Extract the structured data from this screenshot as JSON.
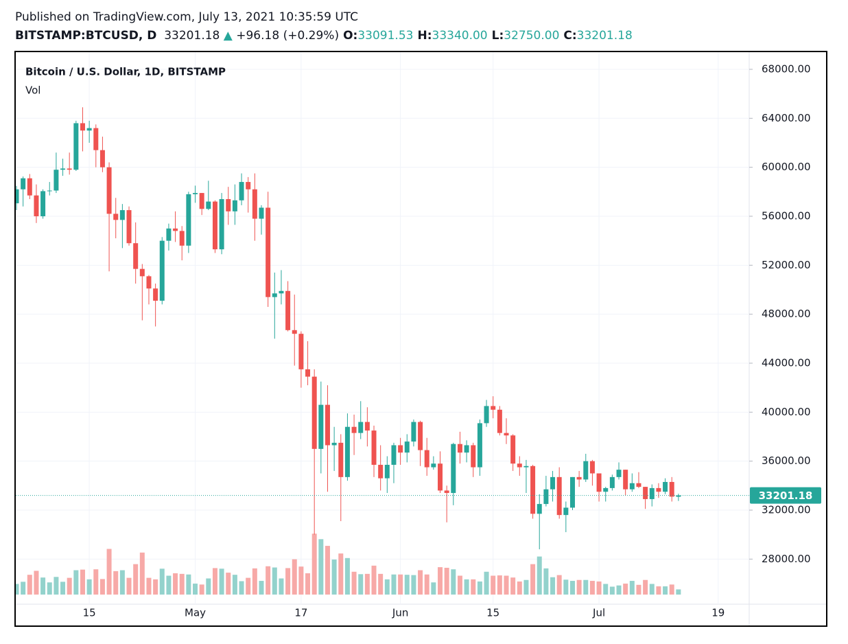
{
  "header": {
    "published": "Published on TradingView.com, July 13, 2021 10:35:59 UTC",
    "symbol": "BITSTAMP:BTCUSD, D",
    "last": "33201.18",
    "arrow": "▲",
    "change": "+96.18 (+0.29%)",
    "ohlc": [
      {
        "label": "O:",
        "value": "33091.53"
      },
      {
        "label": "H:",
        "value": "33340.00"
      },
      {
        "label": "L:",
        "value": "32750.00"
      },
      {
        "label": "C:",
        "value": "33201.18"
      }
    ]
  },
  "chart_data": {
    "type": "candlestick",
    "title": "Bitcoin / U.S. Dollar, 1D, BITSTAMP",
    "volume_label": "Vol",
    "up_color": "#26a69a",
    "down_color": "#ef5350",
    "volume_up_color": "#93d2cc",
    "volume_down_color": "#f7a9a7",
    "grid": true,
    "x": [
      "2021-04-04",
      "2021-04-05",
      "2021-04-06",
      "2021-04-07",
      "2021-04-08",
      "2021-04-09",
      "2021-04-10",
      "2021-04-11",
      "2021-04-12",
      "2021-04-13",
      "2021-04-14",
      "2021-04-15",
      "2021-04-16",
      "2021-04-17",
      "2021-04-18",
      "2021-04-19",
      "2021-04-20",
      "2021-04-21",
      "2021-04-22",
      "2021-04-23",
      "2021-04-24",
      "2021-04-25",
      "2021-04-26",
      "2021-04-27",
      "2021-04-28",
      "2021-04-29",
      "2021-04-30",
      "2021-05-01",
      "2021-05-02",
      "2021-05-03",
      "2021-05-04",
      "2021-05-05",
      "2021-05-06",
      "2021-05-07",
      "2021-05-08",
      "2021-05-09",
      "2021-05-10",
      "2021-05-11",
      "2021-05-12",
      "2021-05-13",
      "2021-05-14",
      "2021-05-15",
      "2021-05-16",
      "2021-05-17",
      "2021-05-18",
      "2021-05-19",
      "2021-05-20",
      "2021-05-21",
      "2021-05-22",
      "2021-05-23",
      "2021-05-24",
      "2021-05-25",
      "2021-05-26",
      "2021-05-27",
      "2021-05-28",
      "2021-05-29",
      "2021-05-30",
      "2021-05-31",
      "2021-06-01",
      "2021-06-02",
      "2021-06-03",
      "2021-06-04",
      "2021-06-05",
      "2021-06-06",
      "2021-06-07",
      "2021-06-08",
      "2021-06-09",
      "2021-06-10",
      "2021-06-11",
      "2021-06-12",
      "2021-06-13",
      "2021-06-14",
      "2021-06-15",
      "2021-06-16",
      "2021-06-17",
      "2021-06-18",
      "2021-06-19",
      "2021-06-20",
      "2021-06-21",
      "2021-06-22",
      "2021-06-23",
      "2021-06-24",
      "2021-06-25",
      "2021-06-26",
      "2021-06-27",
      "2021-06-28",
      "2021-06-29",
      "2021-06-30",
      "2021-07-01",
      "2021-07-02",
      "2021-07-03",
      "2021-07-04",
      "2021-07-05",
      "2021-07-06",
      "2021-07-07",
      "2021-07-08",
      "2021-07-09",
      "2021-07-10",
      "2021-07-11",
      "2021-07-12",
      "2021-07-13"
    ],
    "open": [
      57060,
      58200,
      59100,
      57700,
      56000,
      58050,
      58100,
      59800,
      59900,
      59800,
      63600,
      63000,
      63200,
      61400,
      60000,
      56200,
      55700,
      56500,
      53800,
      51700,
      51100,
      50100,
      49100,
      54000,
      55000,
      54800,
      53600,
      57800,
      57900,
      56600,
      57200,
      53300,
      57400,
      56400,
      57300,
      58800,
      58200,
      55800,
      56700,
      49400,
      49700,
      49900,
      46700,
      46400,
      43500,
      42900,
      37000,
      40600,
      37300,
      37500,
      34700,
      38800,
      38300,
      39200,
      38500,
      35700,
      34600,
      35700,
      37300,
      36700,
      37600,
      39200,
      36900,
      35500,
      35800,
      33600,
      33400,
      37400,
      36700,
      37300,
      35500,
      39100,
      40500,
      40200,
      38300,
      38100,
      35800,
      35500,
      35600,
      31700,
      32500,
      33700,
      34700,
      31600,
      32200,
      34700,
      34500,
      36000,
      35000,
      33500,
      33800,
      34700,
      35300,
      33700,
      34200,
      33900,
      32900,
      33800,
      33500,
      34300,
      33091.53
    ],
    "high": [
      58480,
      59250,
      59450,
      58600,
      58200,
      58800,
      61200,
      60700,
      61200,
      63800,
      64900,
      63800,
      63500,
      62500,
      60400,
      57500,
      57000,
      56800,
      55500,
      52100,
      51200,
      50500,
      54300,
      55400,
      56400,
      55200,
      58000,
      58500,
      57900,
      58900,
      57300,
      57900,
      58400,
      58600,
      59500,
      59200,
      59500,
      56900,
      58000,
      51400,
      51600,
      50700,
      49600,
      46600,
      45800,
      43500,
      42500,
      42200,
      38800,
      38200,
      39900,
      39800,
      40900,
      40400,
      38900,
      37300,
      36400,
      37500,
      37900,
      38200,
      39400,
      39300,
      37900,
      36400,
      36800,
      34000,
      37500,
      38400,
      37700,
      37500,
      39400,
      41000,
      41300,
      40500,
      39500,
      38200,
      36400,
      36100,
      35700,
      33300,
      34800,
      35200,
      35500,
      32700,
      34700,
      35200,
      36600,
      36100,
      35000,
      33900,
      34900,
      35900,
      35300,
      35000,
      35100,
      33900,
      34100,
      34200,
      34600,
      34700,
      33340
    ],
    "low": [
      56500,
      56800,
      57400,
      55450,
      55800,
      57700,
      57900,
      59300,
      59400,
      59700,
      61300,
      62000,
      60000,
      59600,
      51500,
      54200,
      53400,
      53600,
      50500,
      47500,
      48800,
      47000,
      48800,
      53200,
      53900,
      52400,
      53000,
      57100,
      56100,
      56500,
      53000,
      52900,
      55300,
      55300,
      56900,
      56300,
      54000,
      54500,
      48600,
      46000,
      48800,
      46600,
      43800,
      42000,
      42200,
      30000,
      35000,
      33500,
      35200,
      31100,
      34400,
      36500,
      37800,
      37200,
      34700,
      33600,
      33400,
      34200,
      35700,
      35900,
      37200,
      35600,
      34800,
      35300,
      33400,
      31000,
      32400,
      35800,
      35900,
      34700,
      34800,
      38800,
      39500,
      38100,
      37400,
      35200,
      34800,
      33400,
      31300,
      28800,
      32300,
      32700,
      31300,
      30200,
      32000,
      33900,
      34300,
      34000,
      32700,
      32700,
      33600,
      34500,
      33200,
      33500,
      33800,
      32100,
      32300,
      33000,
      33300,
      32700,
      32750
    ],
    "close": [
      58200,
      59100,
      57700,
      56000,
      58050,
      58100,
      59800,
      59900,
      59800,
      63600,
      63000,
      63200,
      61400,
      60000,
      56200,
      55700,
      56500,
      53800,
      51700,
      51100,
      50100,
      49100,
      54000,
      55000,
      54800,
      53600,
      57800,
      57900,
      56600,
      57200,
      53300,
      57400,
      56400,
      57300,
      58800,
      58200,
      55800,
      56700,
      49400,
      49700,
      49900,
      46700,
      46400,
      43500,
      42900,
      37000,
      40600,
      37300,
      37500,
      34700,
      38800,
      38300,
      39200,
      38500,
      35700,
      34600,
      35700,
      37300,
      36700,
      37600,
      39200,
      36900,
      35500,
      35800,
      33600,
      33400,
      37400,
      36700,
      37300,
      35500,
      39100,
      40500,
      40200,
      38300,
      38100,
      35800,
      35500,
      35600,
      31700,
      32500,
      33700,
      34700,
      31600,
      32200,
      34700,
      34500,
      36000,
      35000,
      33500,
      33800,
      34700,
      35300,
      33700,
      34200,
      33900,
      32900,
      33800,
      33500,
      34300,
      33100,
      33201.18
    ],
    "volume": [
      3500,
      4200,
      6500,
      7800,
      5600,
      4000,
      5800,
      4200,
      5500,
      8000,
      8200,
      5000,
      8300,
      5100,
      15000,
      7700,
      8000,
      5500,
      10000,
      13800,
      5500,
      5000,
      8500,
      6200,
      7000,
      6800,
      6600,
      3600,
      3300,
      5300,
      8700,
      8500,
      7200,
      6500,
      4400,
      5500,
      8600,
      4500,
      9300,
      8900,
      5300,
      8700,
      11600,
      9200,
      7000,
      20000,
      18200,
      16000,
      11500,
      13500,
      12000,
      7500,
      6700,
      6800,
      9500,
      6800,
      5000,
      6600,
      6600,
      6500,
      6400,
      8000,
      6600,
      4000,
      9000,
      8800,
      8300,
      6200,
      5000,
      5000,
      4300,
      7500,
      6200,
      6300,
      6200,
      5600,
      4300,
      4800,
      10000,
      12500,
      8600,
      5700,
      6400,
      4900,
      4500,
      4800,
      4800,
      4500,
      4300,
      3500,
      2600,
      3000,
      3600,
      4500,
      3200,
      4800,
      3500,
      2700,
      2700,
      3300,
      1700
    ],
    "xlim": [
      "2021-04-04",
      "2021-07-24"
    ],
    "xticks": [
      {
        "value": "2021-04-15",
        "label": "15"
      },
      {
        "value": "2021-05-01",
        "label": "May"
      },
      {
        "value": "2021-05-17",
        "label": "17"
      },
      {
        "value": "2021-06-01",
        "label": "Jun"
      },
      {
        "value": "2021-06-15",
        "label": "15"
      },
      {
        "value": "2021-07-01",
        "label": "Jul"
      },
      {
        "value": "2021-07-19",
        "label": "19"
      }
    ],
    "ylim": [
      26000,
      69400
    ],
    "yticks": [
      {
        "value": 28000,
        "label": "28000.00"
      },
      {
        "value": 32000,
        "label": "32000.00"
      },
      {
        "value": 36000,
        "label": "36000.00"
      },
      {
        "value": 40000,
        "label": "40000.00"
      },
      {
        "value": 44000,
        "label": "44000.00"
      },
      {
        "value": 48000,
        "label": "48000.00"
      },
      {
        "value": 52000,
        "label": "52000.00"
      },
      {
        "value": 56000,
        "label": "56000.00"
      },
      {
        "value": 60000,
        "label": "60000.00"
      },
      {
        "value": 64000,
        "label": "64000.00"
      },
      {
        "value": 68000,
        "label": "68000.00"
      }
    ],
    "vlim": [
      0,
      30000
    ],
    "last_price": {
      "value": 33201.18,
      "label": "33201.18"
    }
  }
}
